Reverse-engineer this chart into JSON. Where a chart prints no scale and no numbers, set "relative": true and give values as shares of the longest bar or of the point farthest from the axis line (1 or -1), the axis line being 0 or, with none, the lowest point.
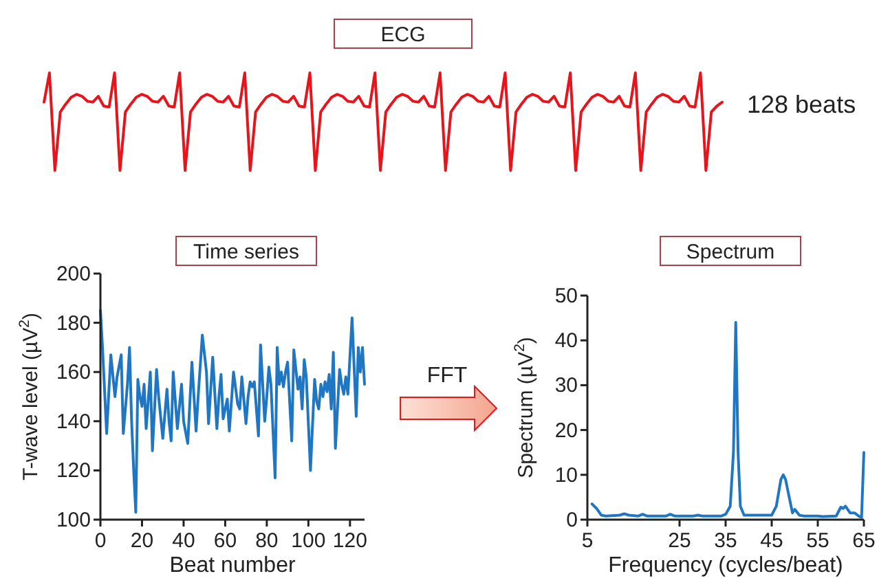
{
  "chart_data": [
    {
      "type": "line",
      "title": "ECG",
      "annotations": [
        "128 beats"
      ],
      "relative": true,
      "categories": [
        null,
        null,
        null,
        null,
        null,
        null,
        null,
        null,
        null,
        null,
        null,
        null,
        null,
        null,
        null,
        null,
        null,
        null,
        null,
        null,
        null,
        null,
        null,
        null,
        null,
        null,
        null,
        null,
        null,
        null,
        null,
        null,
        null,
        null,
        null,
        null,
        null,
        null,
        null,
        null,
        null,
        null,
        null,
        null,
        null,
        null,
        null,
        null,
        null,
        null,
        null,
        null,
        null,
        null,
        null,
        null,
        null,
        null,
        null,
        null,
        null,
        null,
        null,
        null,
        null,
        null,
        null,
        null,
        null,
        null,
        null,
        null,
        null,
        null,
        null,
        null,
        null,
        null,
        null,
        null,
        null,
        null,
        null,
        null,
        null,
        null,
        null,
        null,
        null,
        null,
        null,
        null,
        null,
        null,
        null,
        null,
        null,
        null,
        null,
        null,
        null,
        null,
        null,
        null,
        null,
        null,
        null,
        null,
        null,
        null,
        null,
        null,
        null,
        null,
        null,
        null,
        null,
        null,
        null,
        null,
        null,
        null,
        null,
        null,
        null,
        null
      ],
      "series": [
        {
          "color": "#e8141c",
          "values": [
            0.7,
            1,
            0,
            0.6,
            0.68,
            0.75,
            0.78,
            0.76,
            0.71,
            0.7,
            0.76,
            0.66,
            0.65,
            1,
            0,
            0.6,
            0.68,
            0.75,
            0.78,
            0.76,
            0.71,
            0.7,
            0.76,
            0.66,
            0.65,
            1,
            0,
            0.6,
            0.68,
            0.75,
            0.78,
            0.76,
            0.71,
            0.7,
            0.76,
            0.66,
            0.65,
            1,
            0,
            0.6,
            0.68,
            0.75,
            0.78,
            0.76,
            0.71,
            0.7,
            0.76,
            0.66,
            0.65,
            1,
            0,
            0.6,
            0.68,
            0.75,
            0.78,
            0.76,
            0.71,
            0.7,
            0.76,
            0.66,
            0.65,
            1,
            0,
            0.6,
            0.68,
            0.75,
            0.78,
            0.76,
            0.71,
            0.7,
            0.76,
            0.66,
            0.65,
            1,
            0,
            0.6,
            0.68,
            0.75,
            0.78,
            0.76,
            0.71,
            0.7,
            0.76,
            0.66,
            0.65,
            1,
            0,
            0.6,
            0.68,
            0.75,
            0.78,
            0.76,
            0.71,
            0.7,
            0.76,
            0.66,
            0.65,
            1,
            0,
            0.6,
            0.68,
            0.75,
            0.78,
            0.76,
            0.71,
            0.7,
            0.76,
            0.66,
            0.65,
            1,
            0,
            0.6,
            0.68,
            0.75,
            0.78,
            0.76,
            0.71,
            0.7,
            0.76,
            0.66,
            0.65,
            1,
            0,
            0.6,
            0.66,
            0.7
          ]
        }
      ]
    },
    {
      "type": "line",
      "title": "Time series",
      "xlabel": "Beat number",
      "ylabel": "T-wave level (µV$^{2}$)",
      "xlim": [
        0,
        127
      ],
      "ylim": [
        100,
        200
      ],
      "xticks": [
        0,
        20,
        40,
        60,
        80,
        100,
        120
      ],
      "yticks": [
        100,
        120,
        140,
        160,
        180,
        200
      ],
      "annotations": [
        "FFT"
      ],
      "series": [
        {
          "color": "#1f77c4",
          "x": [
            0,
            1,
            3,
            5,
            7,
            8,
            10,
            11,
            13,
            14,
            15,
            16,
            17,
            18,
            19,
            20,
            21,
            22,
            24,
            25,
            27,
            28,
            30,
            32,
            33,
            34,
            35,
            37,
            39,
            40,
            42,
            44,
            46,
            47,
            49,
            51,
            52,
            54,
            56,
            57,
            58,
            59,
            61,
            62,
            64,
            66,
            67,
            68,
            70,
            71,
            72,
            73,
            74,
            76,
            77,
            79,
            80,
            81,
            82,
            84,
            85,
            86,
            87,
            88,
            89,
            90,
            92,
            93,
            95,
            96,
            97,
            98,
            99,
            101,
            103,
            104,
            105,
            106,
            107,
            108,
            109,
            110,
            111,
            112,
            113,
            115,
            116,
            117,
            118,
            119,
            121,
            123,
            124,
            125,
            126,
            127
          ],
          "values": [
            185,
            170,
            135,
            167,
            150,
            158,
            167,
            135,
            155,
            170,
            140,
            120,
            103,
            157,
            150,
            146,
            155,
            137,
            160,
            128,
            161,
            150,
            133,
            153,
            140,
            132,
            160,
            137,
            155,
            140,
            131,
            164,
            136,
            150,
            175,
            160,
            139,
            166,
            137,
            150,
            159,
            141,
            149,
            136,
            160,
            147,
            145,
            158,
            139,
            150,
            156,
            154,
            156,
            134,
            171,
            140,
            150,
            162,
            155,
            117,
            170,
            155,
            160,
            154,
            160,
            164,
            132,
            169,
            153,
            158,
            145,
            165,
            158,
            120,
            157,
            148,
            145,
            155,
            150,
            156,
            152,
            159,
            145,
            168,
            129,
            161,
            155,
            151,
            158,
            151,
            182,
            142,
            170,
            160,
            170,
            155
          ]
        }
      ]
    },
    {
      "type": "line",
      "title": "Spectrum",
      "xlabel": "Frequency (cycles/beat)",
      "ylabel": "Spectrum (µV$^{2}$)",
      "xlim": [
        5,
        65
      ],
      "ylim": [
        0,
        50
      ],
      "xticks": [
        5,
        25,
        35,
        45,
        55,
        65
      ],
      "yticks": [
        0,
        10,
        20,
        30,
        40,
        50
      ],
      "series": [
        {
          "color": "#1f77c4",
          "x": [
            6,
            7,
            8,
            9,
            12,
            13,
            14,
            16,
            17,
            18,
            22,
            23,
            24,
            28,
            29,
            30,
            34,
            35,
            36,
            36.7,
            37.2,
            37.7,
            38.2,
            39,
            45,
            46,
            47,
            47.5,
            48,
            49,
            49.5,
            50,
            51,
            52,
            55,
            56,
            59,
            60,
            60.5,
            61,
            62,
            63,
            64,
            64.5,
            65
          ],
          "values": [
            3.5,
            2.5,
            1,
            0.8,
            1,
            1.3,
            1,
            0.8,
            1.2,
            0.8,
            0.8,
            1.2,
            0.8,
            0.8,
            1,
            0.8,
            0.8,
            1.2,
            3,
            15,
            44,
            15,
            3,
            1,
            1,
            3,
            9,
            10,
            9,
            4,
            1.5,
            2.3,
            1,
            0.8,
            0.8,
            0.7,
            0.8,
            2.8,
            2.5,
            3,
            1.5,
            1.5,
            0.7,
            0.5,
            15
          ]
        }
      ]
    }
  ]
}
